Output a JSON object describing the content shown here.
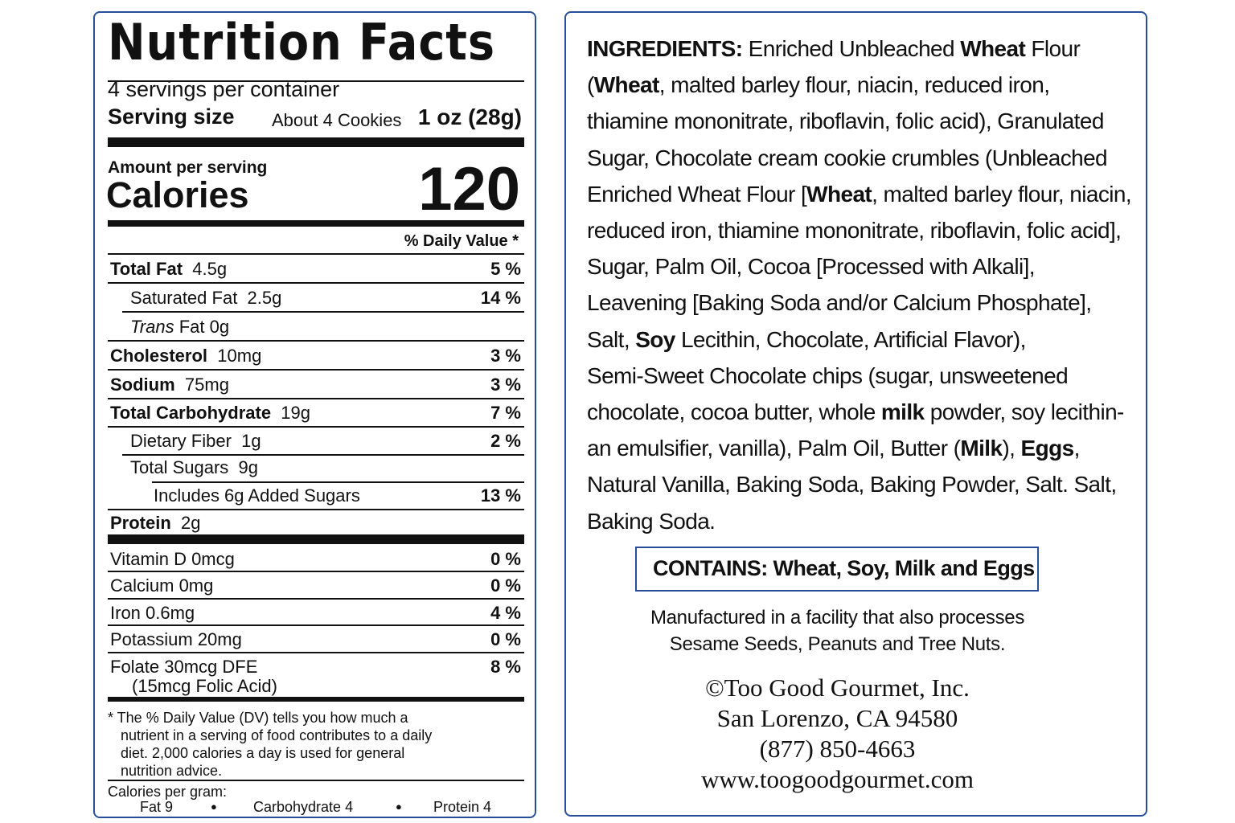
{
  "nutrition": {
    "title": "Nutrition Facts",
    "servings_per_container": "4 servings per container",
    "serving_size_label": "Serving size",
    "serving_size_desc": "About 4 Cookies",
    "serving_size_value": "1 oz (28g)",
    "amount_per_serving": "Amount per serving",
    "calories_label": "Calories",
    "calories_value": "120",
    "daily_value_header": "% Daily Value *",
    "rows": [
      {
        "name": "Total Fat",
        "amount": "4.5g",
        "dv": "5 %"
      },
      {
        "name": "Saturated Fat",
        "amount": "2.5g",
        "dv": "14 %"
      },
      {
        "name_italic": "Trans",
        "name": "Fat",
        "amount": "0g",
        "dv": ""
      },
      {
        "name": "Cholesterol",
        "amount": "10mg",
        "dv": "3 %"
      },
      {
        "name": "Sodium",
        "amount": "75mg",
        "dv": "3 %"
      },
      {
        "name": "Total Carbohydrate",
        "amount": "19g",
        "dv": "7 %"
      },
      {
        "name": "Dietary Fiber",
        "amount": "1g",
        "dv": "2 %"
      },
      {
        "name": "Total Sugars",
        "amount": "9g",
        "dv": ""
      },
      {
        "name": "Includes 6g Added Sugars",
        "amount": "",
        "dv": "13 %"
      },
      {
        "name": "Protein",
        "amount": "2g",
        "dv": ""
      }
    ],
    "vitamins": [
      {
        "name": "Vitamin D 0mcg",
        "dv": "0 %"
      },
      {
        "name": "Calcium 0mg",
        "dv": "0 %"
      },
      {
        "name": "Iron 0.6mg",
        "dv": "4 %"
      },
      {
        "name": "Potassium 20mg",
        "dv": "0 %"
      },
      {
        "name": "Folate 30mcg DFE",
        "sub": "(15mcg Folic Acid)",
        "dv": "8 %"
      }
    ],
    "footnote": [
      "* The % Daily Value (DV) tells you how much a",
      "nutrient in a serving of food contributes to a daily",
      "diet. 2,000 calories a day is used for general",
      "nutrition advice."
    ],
    "calories_per_gram_label": "Calories per gram:",
    "calories_per_gram": [
      "Fat 9",
      "Carbohydrate 4",
      "Protein 4"
    ],
    "bullet": "●"
  },
  "ingredients": {
    "lines": [
      [
        {
          "t": "INGREDIENTS: ",
          "b": true
        },
        {
          "t": "Enriched Unbleached ",
          "b": false
        },
        {
          "t": "Wheat",
          "b": true
        },
        {
          "t": " Flour",
          "b": false
        }
      ],
      [
        {
          "t": "(",
          "b": false
        },
        {
          "t": "Wheat",
          "b": true
        },
        {
          "t": ", malted barley flour, niacin, reduced iron,",
          "b": false
        }
      ],
      [
        {
          "t": "thiamine mononitrate, riboflavin, folic acid), Granulated",
          "b": false
        }
      ],
      [
        {
          "t": "Sugar, Chocolate cream cookie crumbles (Unbleached",
          "b": false
        }
      ],
      [
        {
          "t": "Enriched Wheat Flour [",
          "b": false
        },
        {
          "t": "Wheat",
          "b": true
        },
        {
          "t": ", malted barley flour, niacin,",
          "b": false
        }
      ],
      [
        {
          "t": "reduced iron, thiamine mononitrate, riboflavin, folic acid],",
          "b": false
        }
      ],
      [
        {
          "t": "Sugar, Palm Oil, Cocoa [Processed with Alkali],",
          "b": false
        }
      ],
      [
        {
          "t": "Leavening [Baking Soda and/or Calcium Phosphate],",
          "b": false
        }
      ],
      [
        {
          "t": "Salt, ",
          "b": false
        },
        {
          "t": "Soy",
          "b": true
        },
        {
          "t": " Lecithin, Chocolate, Artificial Flavor),",
          "b": false
        }
      ],
      [
        {
          "t": "Semi-Sweet Chocolate chips (sugar, unsweetened",
          "b": false
        }
      ],
      [
        {
          "t": "chocolate, cocoa butter, whole ",
          "b": false
        },
        {
          "t": "milk",
          "b": true
        },
        {
          "t": " powder, soy lecithin-",
          "b": false
        }
      ],
      [
        {
          "t": "an emulsifier, vanilla), Palm Oil, Butter (",
          "b": false
        },
        {
          "t": "Milk",
          "b": true
        },
        {
          "t": "), ",
          "b": false
        },
        {
          "t": "Eggs",
          "b": true
        },
        {
          "t": ",",
          "b": false
        }
      ],
      [
        {
          "t": "Natural Vanilla, Baking Soda, Baking Powder, Salt. Salt,",
          "b": false
        }
      ],
      [
        {
          "t": "Baking Soda.",
          "b": false
        }
      ]
    ],
    "contains": "CONTAINS: Wheat, Soy, Milk and Eggs",
    "facility_lines": [
      "Manufactured in a facility that also processes",
      "Sesame Seeds, Peanuts and Tree Nuts."
    ],
    "company_lines": [
      "©Too Good Gourmet, Inc.",
      "San Lorenzo, CA 94580",
      "(877) 850-4663",
      "www.toogoodgourmet.com"
    ]
  },
  "colors": {
    "border": "#2a4f9a",
    "text": "#111111"
  }
}
